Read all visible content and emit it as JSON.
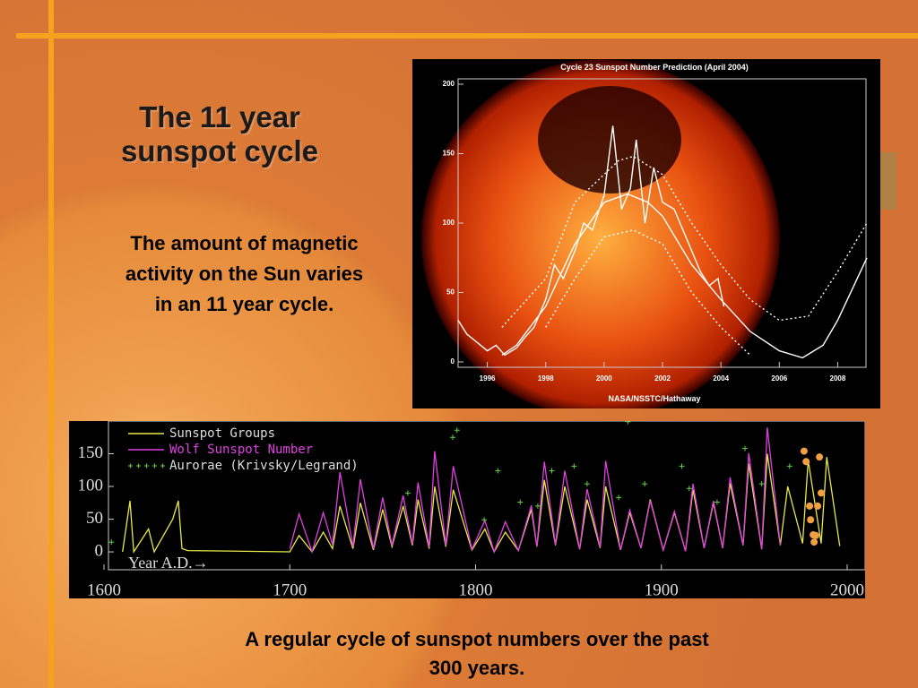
{
  "slide": {
    "title": "The 11 year sunspot cycle",
    "text": "The amount of magnetic activity on the Sun varies in an 11 year cycle.",
    "caption": "A regular cycle of sunspot numbers over the past 300 years."
  },
  "chart_data": [
    {
      "type": "line",
      "title": "Cycle 23 Sunspot Number Prediction (April 2004)",
      "credit": "NASA/NSSTC/Hathaway",
      "xlim": [
        1995,
        2009
      ],
      "xticks": [
        1996,
        1998,
        2000,
        2002,
        2004,
        2006,
        2008
      ],
      "ylim": [
        0,
        200
      ],
      "yticks": [
        0,
        50,
        100,
        150,
        200
      ],
      "series": [
        {
          "color": "#ffffff",
          "dash": false,
          "x": [
            1995,
            1995.3,
            1995.6,
            1996,
            1996.3,
            1996.6,
            1997,
            1997.3,
            1997.6,
            1998,
            1998.3,
            1998.6,
            1999,
            1999.3,
            1999.6,
            2000,
            2000.3,
            2000.6,
            2000.9,
            2001.1,
            2001.4,
            2001.7,
            2002,
            2002.4,
            2002.7,
            2003,
            2003.3,
            2003.6,
            2003.9,
            2004.1
          ],
          "values": [
            30,
            20,
            15,
            8,
            12,
            5,
            10,
            18,
            25,
            45,
            70,
            60,
            80,
            100,
            95,
            120,
            170,
            110,
            125,
            160,
            100,
            140,
            115,
            110,
            95,
            80,
            65,
            55,
            60,
            40
          ]
        },
        {
          "color": "#ffffff",
          "dash": false,
          "x": [
            1996.5,
            1997,
            1998,
            1999,
            2000,
            2000.8,
            2001.5,
            2002,
            2003,
            2004,
            2005,
            2006,
            2006.8,
            2007.5,
            2008,
            2009
          ],
          "values": [
            5,
            12,
            40,
            85,
            115,
            121,
            115,
            105,
            70,
            45,
            22,
            8,
            3,
            12,
            30,
            75
          ]
        },
        {
          "color": "#ffffff",
          "dash": true,
          "x": [
            1996.5,
            1998,
            1999,
            2000.5,
            2001,
            2002,
            2003,
            2004,
            2005,
            2006,
            2007,
            2008,
            2009
          ],
          "values": [
            25,
            60,
            115,
            145,
            148,
            135,
            100,
            70,
            45,
            30,
            33,
            65,
            100
          ]
        },
        {
          "color": "#ffffff",
          "dash": true,
          "x": [
            1998,
            1999,
            2000,
            2001,
            2002,
            2003,
            2004,
            2005
          ],
          "values": [
            25,
            60,
            90,
            95,
            85,
            50,
            25,
            5
          ]
        }
      ]
    },
    {
      "type": "line",
      "xlabel": "Year A.D.→",
      "xlim": [
        1600,
        2000
      ],
      "xticks": [
        1600,
        1700,
        1800,
        1900,
        2000
      ],
      "ylim": [
        -15,
        200
      ],
      "yticks": [
        0,
        50,
        100,
        150
      ],
      "series": [
        {
          "name": "Sunspot Groups",
          "color": "#e8e84a",
          "marker": "line",
          "x": [
            1610,
            1614,
            1616,
            1624,
            1627,
            1637,
            1640,
            1642,
            1645,
            1700,
            1705,
            1712,
            1718,
            1723,
            1727,
            1734,
            1738,
            1745,
            1750,
            1755,
            1761,
            1766,
            1769,
            1775,
            1778,
            1784,
            1788,
            1798,
            1805,
            1810,
            1816,
            1823,
            1830,
            1833,
            1837,
            1843,
            1848,
            1856,
            1860,
            1867,
            1870,
            1878,
            1883,
            1889,
            1894,
            1901,
            1907,
            1913,
            1917,
            1923,
            1928,
            1933,
            1937,
            1944,
            1947,
            1954,
            1957,
            1964,
            1968,
            1976,
            1979,
            1986,
            1989,
            1996
          ],
          "values": [
            0,
            78,
            0,
            35,
            0,
            50,
            78,
            5,
            2,
            0,
            25,
            0,
            30,
            5,
            70,
            5,
            75,
            3,
            65,
            8,
            70,
            10,
            80,
            5,
            100,
            8,
            95,
            3,
            35,
            0,
            30,
            2,
            65,
            8,
            110,
            10,
            100,
            4,
            80,
            6,
            100,
            3,
            60,
            6,
            80,
            3,
            60,
            1,
            95,
            6,
            75,
            6,
            105,
            10,
            135,
            4,
            150,
            10,
            100,
            13,
            140,
            13,
            145,
            9
          ]
        },
        {
          "name": "Wolf Sunspot Number",
          "color": "#e040e0",
          "marker": "line",
          "x": [
            1700,
            1705,
            1712,
            1718,
            1723,
            1727,
            1734,
            1738,
            1745,
            1750,
            1755,
            1761,
            1766,
            1769,
            1775,
            1778,
            1784,
            1788,
            1798,
            1805,
            1810,
            1816,
            1823,
            1830,
            1833,
            1837,
            1843,
            1848,
            1856,
            1860,
            1867,
            1870,
            1878,
            1883,
            1889,
            1894,
            1901,
            1907,
            1913,
            1917,
            1923,
            1928,
            1933,
            1937,
            1944,
            1947,
            1954,
            1957,
            1964
          ],
          "values": [
            5,
            58,
            0,
            60,
            11,
            122,
            8,
            111,
            5,
            83,
            10,
            86,
            12,
            106,
            7,
            154,
            10,
            131,
            4,
            48,
            0,
            46,
            2,
            71,
            8,
            138,
            11,
            124,
            4,
            96,
            7,
            139,
            3,
            64,
            6,
            78,
            3,
            62,
            1,
            104,
            6,
            78,
            6,
            114,
            10,
            151,
            4,
            190,
            10
          ]
        },
        {
          "name": "Aurorae (Krivsky/Legrand)",
          "color": "#60d040",
          "marker": "plus",
          "x": [
            1604,
            1763.5,
            1787.7,
            1790,
            1804.6,
            1812,
            1824,
            1833.5,
            1841,
            1853,
            1860,
            1877,
            1882,
            1891,
            1911,
            1915,
            1930,
            1945,
            1954,
            1969
          ],
          "values": [
            15,
            90,
            175,
            186,
            49,
            124,
            76,
            70,
            124,
            131,
            104,
            83,
            199,
            104,
            131,
            97,
            76,
            158,
            104,
            131
          ]
        },
        {
          "color": "#f0a040",
          "marker": "dot",
          "x": [
            1976.8,
            1977.9,
            1979.8,
            1980.3,
            1981.7,
            1982.2,
            1983.1,
            1984.1,
            1985.1,
            1986
          ],
          "values": [
            154,
            138,
            70,
            49,
            26,
            15,
            25,
            70,
            145,
            90
          ]
        }
      ]
    }
  ]
}
